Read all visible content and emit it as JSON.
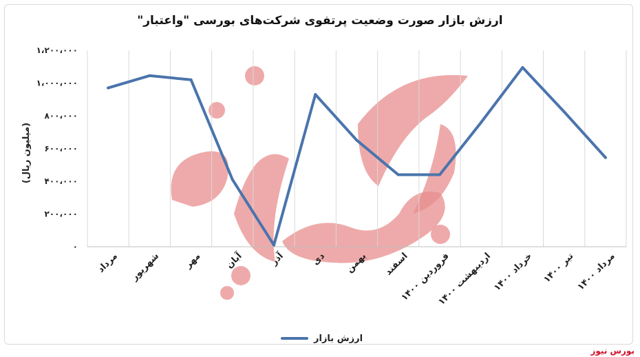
{
  "title": "ارزش بازار صورت وضعیت پرتفوی شرکت‌های بورسی \"واعتبار\"",
  "source_label": "بورس نیوز",
  "watermark": {
    "colors": [
      "#e06a6a",
      "#ee9b9b"
    ]
  },
  "chart_data": {
    "type": "line",
    "ylabel": "(میلیون ریال)",
    "xlabel": "",
    "ylim": [
      0,
      1200000
    ],
    "yticks": [
      0,
      200000,
      400000,
      600000,
      800000,
      1000000,
      1200000
    ],
    "ytick_labels": [
      "۰",
      "۲۰۰،۰۰۰",
      "۴۰۰،۰۰۰",
      "۶۰۰،۰۰۰",
      "۸۰۰،۰۰۰",
      "۱،۰۰۰،۰۰۰",
      "۱،۲۰۰،۰۰۰"
    ],
    "categories": [
      "مرداد",
      "شهریور",
      "مهر",
      "آبان",
      "آذر",
      "دی",
      "بهمن",
      "اسفند",
      "فروردین ۱۴۰۰",
      "اردیبهشت ۱۴۰۰",
      "خرداد ۱۴۰۰",
      "تیر ۱۴۰۰",
      "مرداد ۱۴۰۰"
    ],
    "series": [
      {
        "name": "ارزش بازار",
        "color": "#4a74ac",
        "values": [
          970000,
          1045000,
          1020000,
          410000,
          10000,
          930000,
          650000,
          440000,
          440000,
          760000,
          1095000,
          825000,
          545000
        ]
      }
    ],
    "grid": {
      "vertical": true,
      "horizontal": false
    },
    "legend": "bottom"
  }
}
